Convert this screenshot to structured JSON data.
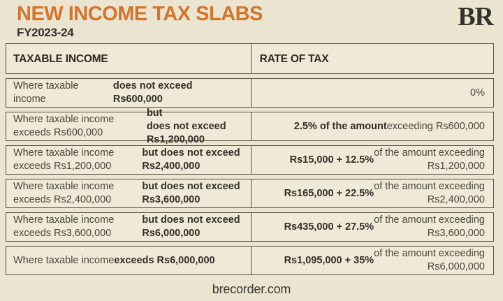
{
  "header": {
    "title": "NEW INCOME TAX SLABS",
    "subtitle": "FY2023-24",
    "logo": "BR"
  },
  "colors": {
    "accent_orange": "#d2752e",
    "background": "#ebe4d1",
    "cell_background": "#efe9d8",
    "border": "#55503f",
    "text": "#4b463c",
    "text_bold": "#332f28"
  },
  "table": {
    "columns": [
      "TAXABLE INCOME",
      "RATE OF TAX"
    ],
    "rows": [
      {
        "taxable_income": [
          {
            "text": "Where taxable income ",
            "bold": false
          },
          {
            "text": "does not exceed Rs600,000",
            "bold": true
          }
        ],
        "rate_of_tax": [
          {
            "text": "0%",
            "bold": false
          }
        ]
      },
      {
        "taxable_income": [
          {
            "text": "Where taxable income exceeds Rs600,000 ",
            "bold": false
          },
          {
            "text": "but\ndoes not exceed Rs1,200,000",
            "bold": true
          }
        ],
        "rate_of_tax": [
          {
            "text": "2.5% of the amount",
            "bold": true
          },
          {
            "text": " exceeding Rs600,000",
            "bold": false
          }
        ]
      },
      {
        "taxable_income": [
          {
            "text": "Where taxable income exceeds Rs1,200,000\n",
            "bold": false
          },
          {
            "text": "but does not exceed Rs2,400,000",
            "bold": true
          }
        ],
        "rate_of_tax": [
          {
            "text": "Rs15,000 + 12.5%",
            "bold": true
          },
          {
            "text": " of the amount exceeding\nRs1,200,000",
            "bold": false
          }
        ]
      },
      {
        "taxable_income": [
          {
            "text": "Where taxable income exceeds Rs2,400,000\n",
            "bold": false
          },
          {
            "text": "but does not exceed Rs3,600,000",
            "bold": true
          }
        ],
        "rate_of_tax": [
          {
            "text": "Rs165,000 + 22.5%",
            "bold": true
          },
          {
            "text": " of the amount exceeding\nRs2,400,000",
            "bold": false
          }
        ]
      },
      {
        "taxable_income": [
          {
            "text": "Where taxable income exceeds Rs3,600,000\n",
            "bold": false
          },
          {
            "text": "but does not exceed Rs6,000,000",
            "bold": true
          }
        ],
        "rate_of_tax": [
          {
            "text": "Rs435,000 + 27.5%",
            "bold": true
          },
          {
            "text": " of the amount exceeding\nRs3,600,000",
            "bold": false
          }
        ]
      },
      {
        "taxable_income": [
          {
            "text": "Where taxable income ",
            "bold": false
          },
          {
            "text": "exceeds Rs6,000,000",
            "bold": true
          }
        ],
        "rate_of_tax": [
          {
            "text": "Rs1,095,000 + 35%",
            "bold": true
          },
          {
            "text": " of the amount exceeding\nRs6,000,000",
            "bold": false
          }
        ]
      }
    ]
  },
  "footer": {
    "website": "brecorder.com"
  }
}
